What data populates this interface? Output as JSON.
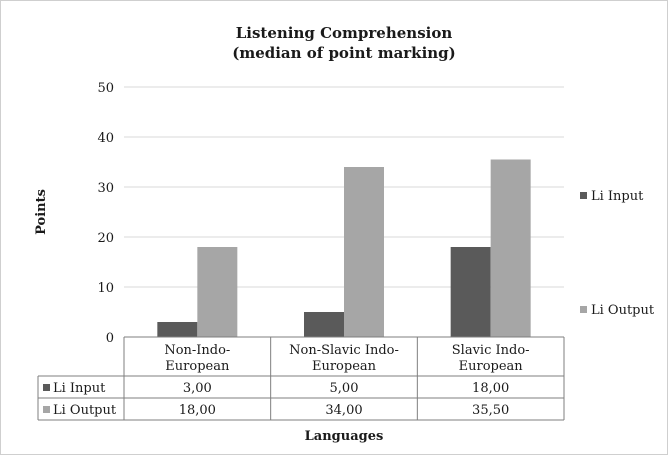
{
  "chart_data": {
    "type": "bar",
    "title_lines": [
      "Listening Comprehension",
      "(median of point marking)"
    ],
    "xlabel": "Languages",
    "ylabel": "Points",
    "ylim": [
      0,
      50
    ],
    "yticks": [
      0,
      10,
      20,
      30,
      40,
      50
    ],
    "categories": [
      [
        "Non-Indo-",
        "European"
      ],
      [
        "Non-Slavic Indo-",
        "European"
      ],
      [
        "Slavic Indo-",
        "European"
      ]
    ],
    "series": [
      {
        "name": "Li Input",
        "color": "#5a5a5a",
        "values": [
          3,
          5,
          18
        ],
        "table_labels": [
          "3,00",
          "5,00",
          "18,00"
        ]
      },
      {
        "name": "Li Output",
        "color": "#a6a6a6",
        "values": [
          18,
          34,
          35.5
        ],
        "table_labels": [
          "18,00",
          "34,00",
          "35,50"
        ]
      }
    ],
    "legend_position": "right",
    "grid": true
  }
}
